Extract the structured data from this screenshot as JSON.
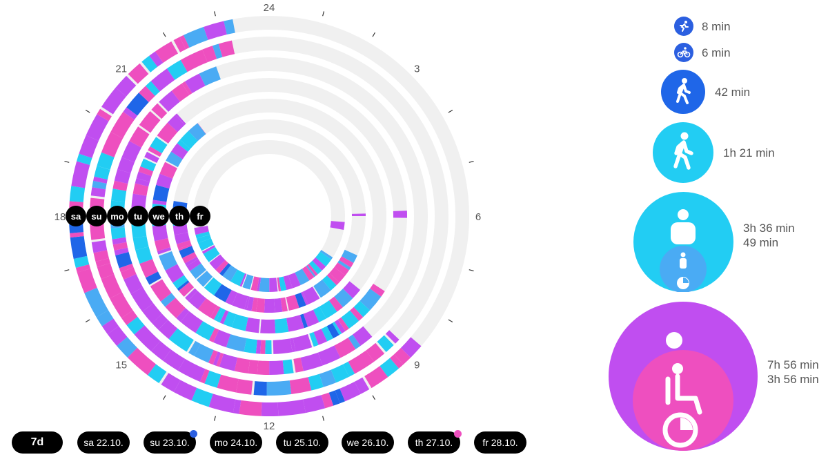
{
  "clock": {
    "hour_labels": [
      "12",
      "15",
      "18",
      "21",
      "24",
      "3",
      "6",
      "9"
    ],
    "day_rings": [
      "sa",
      "su",
      "mo",
      "tu",
      "we",
      "th",
      "fr"
    ]
  },
  "legend": [
    {
      "activity": "running",
      "icon": "running-icon",
      "duration": "8 min",
      "color": "#2b5fe0"
    },
    {
      "activity": "cycling",
      "icon": "cycling-icon",
      "duration": "6 min",
      "color": "#2b5fe0"
    },
    {
      "activity": "walking-fast",
      "icon": "walking-icon",
      "duration": "42 min",
      "color": "#1f66e8"
    },
    {
      "activity": "walking",
      "icon": "walking-icon",
      "duration": "1h 21 min",
      "color": "#22cdf3"
    },
    {
      "activity": "standing",
      "icon": "standing-icon",
      "duration": "3h 36 min",
      "sub_duration": "49 min",
      "color": "#22cdf3",
      "sub_color": "#4aabf4"
    },
    {
      "activity": "sitting",
      "icon": "sitting-icon",
      "duration": "7h 56 min",
      "sub_duration": "3h 56 min",
      "color": "#c04ef0",
      "sub_color": "#ee4fbf"
    }
  ],
  "tabs": [
    {
      "label": "7d",
      "active": true
    },
    {
      "label": "sa 22.10.",
      "active": false
    },
    {
      "label": "su 23.10.",
      "active": false,
      "dot": "#2b5fe0"
    },
    {
      "label": "mo 24.10.",
      "active": false
    },
    {
      "label": "tu 25.10.",
      "active": false
    },
    {
      "label": "we 26.10.",
      "active": false
    },
    {
      "label": "th 27.10.",
      "active": false,
      "dot": "#ee4fbf"
    },
    {
      "label": "fr 28.10.",
      "active": false
    }
  ],
  "colors": {
    "sitting": "#c04ef0",
    "lying": "#ee4fbf",
    "walking": "#22cdf3",
    "standing": "#4aabf4",
    "fast": "#1f66e8",
    "empty": "#f0f0f0"
  }
}
